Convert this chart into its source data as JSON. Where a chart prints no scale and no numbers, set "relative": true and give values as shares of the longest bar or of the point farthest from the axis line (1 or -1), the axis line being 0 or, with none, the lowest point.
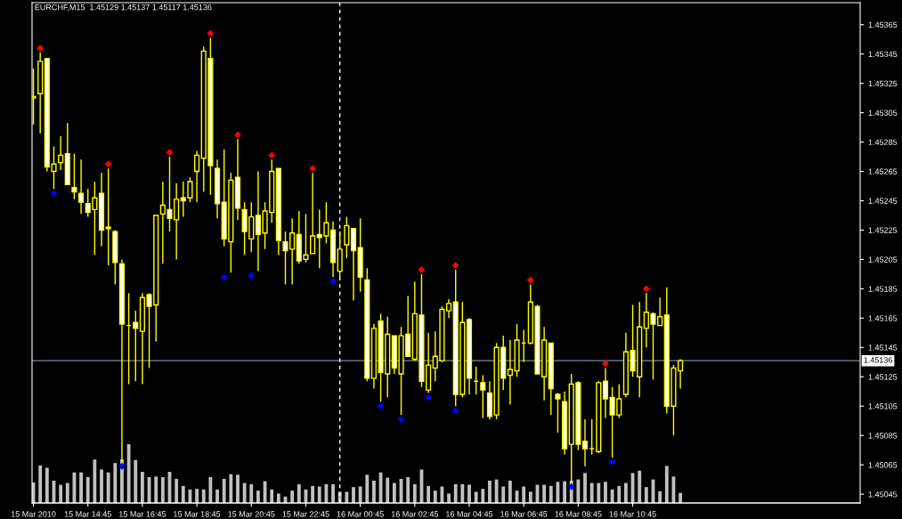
{
  "chart_data": [
    {
      "type": "candlestick",
      "title": "EURCHF,M15  1.45129 1.45137 1.45117 1.45136",
      "x": [
        "2010-03-15T12:45",
        "2010-03-15T13:00",
        "2010-03-15T13:15",
        "2010-03-15T13:30",
        "2010-03-15T13:45",
        "2010-03-15T14:00",
        "2010-03-15T14:15",
        "2010-03-15T14:30",
        "2010-03-15T14:45",
        "2010-03-15T15:00",
        "2010-03-15T15:15",
        "2010-03-15T15:30",
        "2010-03-15T15:45",
        "2010-03-15T16:00",
        "2010-03-15T16:15",
        "2010-03-15T16:30",
        "2010-03-15T16:45",
        "2010-03-15T17:00",
        "2010-03-15T17:15",
        "2010-03-15T17:30",
        "2010-03-15T17:45",
        "2010-03-15T18:00",
        "2010-03-15T18:15",
        "2010-03-15T18:30",
        "2010-03-15T18:45",
        "2010-03-15T19:00",
        "2010-03-15T19:15",
        "2010-03-15T19:30",
        "2010-03-15T19:45",
        "2010-03-15T20:00",
        "2010-03-15T20:15",
        "2010-03-15T20:30",
        "2010-03-15T20:45",
        "2010-03-15T21:00",
        "2010-03-15T21:15",
        "2010-03-15T21:30",
        "2010-03-15T21:45",
        "2010-03-15T22:00",
        "2010-03-15T22:15",
        "2010-03-15T22:30",
        "2010-03-15T22:45",
        "2010-03-15T23:00",
        "2010-03-15T23:15",
        "2010-03-15T23:30",
        "2010-03-15T23:45",
        "2010-03-16T00:00",
        "2010-03-16T00:15",
        "2010-03-16T00:30",
        "2010-03-16T00:45",
        "2010-03-16T01:00",
        "2010-03-16T01:15",
        "2010-03-16T01:30",
        "2010-03-16T01:45",
        "2010-03-16T02:00",
        "2010-03-16T02:15",
        "2010-03-16T02:30",
        "2010-03-16T02:45",
        "2010-03-16T03:00",
        "2010-03-16T03:15",
        "2010-03-16T03:30",
        "2010-03-16T03:45",
        "2010-03-16T04:00",
        "2010-03-16T04:15",
        "2010-03-16T04:30",
        "2010-03-16T04:45",
        "2010-03-16T05:00",
        "2010-03-16T05:15",
        "2010-03-16T05:30",
        "2010-03-16T05:45",
        "2010-03-16T06:00",
        "2010-03-16T06:15",
        "2010-03-16T06:30",
        "2010-03-16T06:45",
        "2010-03-16T07:00",
        "2010-03-16T07:15",
        "2010-03-16T07:30",
        "2010-03-16T07:45",
        "2010-03-16T08:00",
        "2010-03-16T08:15",
        "2010-03-16T08:30",
        "2010-03-16T08:45",
        "2010-03-16T09:00",
        "2010-03-16T09:15",
        "2010-03-16T09:30",
        "2010-03-16T09:45",
        "2010-03-16T10:00",
        "2010-03-16T10:15",
        "2010-03-16T10:30",
        "2010-03-16T10:45",
        "2010-03-16T11:00",
        "2010-03-16T11:15",
        "2010-03-16T11:30",
        "2010-03-16T11:45",
        "2010-03-16T12:00",
        "2010-03-16T12:15",
        "2010-03-16T12:30"
      ],
      "series": [
        {
          "type": "candlestick",
          "color": "#ffff00",
          "ohlc": [
            [
              1.45315,
              1.45335,
              1.45297,
              1.45316
            ],
            [
              1.45318,
              1.45346,
              1.45291,
              1.4534
            ],
            [
              1.45342,
              1.45342,
              1.45265,
              1.45268
            ],
            [
              1.45265,
              1.45282,
              1.45253,
              1.4527
            ],
            [
              1.45271,
              1.45289,
              1.45266,
              1.45276
            ],
            [
              1.45277,
              1.45298,
              1.45256,
              1.45256
            ],
            [
              1.45254,
              1.45277,
              1.45246,
              1.45251
            ],
            [
              1.4525,
              1.45273,
              1.45236,
              1.45244
            ],
            [
              1.45243,
              1.45253,
              1.45234,
              1.45237
            ],
            [
              1.45239,
              1.45258,
              1.45208,
              1.45247
            ],
            [
              1.4525,
              1.45264,
              1.45214,
              1.45225
            ],
            [
              1.45227,
              1.45267,
              1.45201,
              1.45226
            ],
            [
              1.45224,
              1.45225,
              1.45188,
              1.45203
            ],
            [
              1.45202,
              1.45205,
              1.45067,
              1.45161
            ],
            [
              1.4516,
              1.45182,
              1.4512,
              1.4516
            ],
            [
              1.45162,
              1.4517,
              1.45122,
              1.45158
            ],
            [
              1.45156,
              1.45182,
              1.4512,
              1.45179
            ],
            [
              1.45181,
              1.45182,
              1.45131,
              1.45173
            ],
            [
              1.45174,
              1.45235,
              1.45149,
              1.45235
            ],
            [
              1.45236,
              1.45258,
              1.45202,
              1.45242
            ],
            [
              1.45239,
              1.45275,
              1.45224,
              1.45233
            ],
            [
              1.45232,
              1.45257,
              1.45205,
              1.45246
            ],
            [
              1.45247,
              1.45258,
              1.45234,
              1.45245
            ],
            [
              1.45247,
              1.45261,
              1.45244,
              1.45258
            ],
            [
              1.45265,
              1.45279,
              1.45244,
              1.45276
            ],
            [
              1.45274,
              1.4535,
              1.45251,
              1.45347
            ],
            [
              1.45342,
              1.45356,
              1.45249,
              1.45269
            ],
            [
              1.45267,
              1.45273,
              1.45233,
              1.45243
            ],
            [
              1.45244,
              1.4528,
              1.45214,
              1.45219
            ],
            [
              1.45217,
              1.45264,
              1.45196,
              1.45259
            ],
            [
              1.45261,
              1.45287,
              1.45232,
              1.4524
            ],
            [
              1.45239,
              1.45244,
              1.45208,
              1.45224
            ],
            [
              1.45219,
              1.45244,
              1.4521,
              1.45234
            ],
            [
              1.45235,
              1.45265,
              1.45197,
              1.45222
            ],
            [
              1.45223,
              1.45244,
              1.45212,
              1.45238
            ],
            [
              1.45237,
              1.45273,
              1.4523,
              1.45265
            ],
            [
              1.45267,
              1.45267,
              1.45208,
              1.45218
            ],
            [
              1.45217,
              1.45224,
              1.45188,
              1.45211
            ],
            [
              1.45212,
              1.45233,
              1.45188,
              1.45223
            ],
            [
              1.45222,
              1.45238,
              1.45202,
              1.45204
            ],
            [
              1.45205,
              1.45236,
              1.45203,
              1.45208
            ],
            [
              1.45209,
              1.45264,
              1.45209,
              1.45221
            ],
            [
              1.45222,
              1.45239,
              1.45199,
              1.4522
            ],
            [
              1.45221,
              1.45244,
              1.45216,
              1.4523
            ],
            [
              1.45225,
              1.45231,
              1.45193,
              1.45203
            ],
            [
              1.45197,
              1.45224,
              1.45193,
              1.45212
            ],
            [
              1.45215,
              1.45234,
              1.45206,
              1.45228
            ],
            [
              1.45226,
              1.45226,
              1.45177,
              1.45211
            ],
            [
              1.45213,
              1.45233,
              1.45183,
              1.45193
            ],
            [
              1.45191,
              1.45199,
              1.45122,
              1.45124
            ],
            [
              1.45124,
              1.45161,
              1.45117,
              1.45158
            ],
            [
              1.45163,
              1.45168,
              1.45108,
              1.45128
            ],
            [
              1.45127,
              1.45166,
              1.45111,
              1.45154
            ],
            [
              1.45153,
              1.45153,
              1.45127,
              1.45131
            ],
            [
              1.45127,
              1.45159,
              1.45099,
              1.45153
            ],
            [
              1.45154,
              1.4518,
              1.45139,
              1.45139
            ],
            [
              1.45137,
              1.4519,
              1.45136,
              1.45168
            ],
            [
              1.45167,
              1.45195,
              1.45118,
              1.45122
            ],
            [
              1.45116,
              1.45155,
              1.45114,
              1.45133
            ],
            [
              1.45131,
              1.45156,
              1.45122,
              1.45139
            ],
            [
              1.45136,
              1.45173,
              1.45135,
              1.45171
            ],
            [
              1.4517,
              1.45178,
              1.45165,
              1.45175
            ],
            [
              1.45176,
              1.45198,
              1.45105,
              1.45113
            ],
            [
              1.45113,
              1.45176,
              1.45111,
              1.45162
            ],
            [
              1.45164,
              1.45165,
              1.45113,
              1.45124
            ],
            [
              1.45122,
              1.45132,
              1.45113,
              1.45122
            ],
            [
              1.45121,
              1.45126,
              1.45097,
              1.45116
            ],
            [
              1.45114,
              1.45122,
              1.45096,
              1.45098
            ],
            [
              1.45099,
              1.45148,
              1.45096,
              1.45145
            ],
            [
              1.45145,
              1.45153,
              1.45116,
              1.45124
            ],
            [
              1.45126,
              1.4515,
              1.45106,
              1.4513
            ],
            [
              1.45129,
              1.45161,
              1.45125,
              1.4515
            ],
            [
              1.45148,
              1.45157,
              1.45135,
              1.45148
            ],
            [
              1.45148,
              1.45188,
              1.45147,
              1.45176
            ],
            [
              1.45173,
              1.45174,
              1.45127,
              1.45127
            ],
            [
              1.45125,
              1.45159,
              1.45109,
              1.4515
            ],
            [
              1.45148,
              1.45148,
              1.45099,
              1.45117
            ],
            [
              1.45113,
              1.45114,
              1.45087,
              1.4511
            ],
            [
              1.45108,
              1.45115,
              1.45072,
              1.45076
            ],
            [
              1.45079,
              1.45127,
              1.45053,
              1.4512
            ],
            [
              1.45121,
              1.45122,
              1.45075,
              1.45079
            ],
            [
              1.45081,
              1.45096,
              1.45064,
              1.45076
            ],
            [
              1.45076,
              1.45096,
              1.45072,
              1.45076
            ],
            [
              1.45074,
              1.45122,
              1.45073,
              1.45121
            ],
            [
              1.45122,
              1.45131,
              1.45097,
              1.4511
            ],
            [
              1.45111,
              1.45118,
              1.4507,
              1.45099
            ],
            [
              1.45099,
              1.4512,
              1.45097,
              1.4511
            ],
            [
              1.45113,
              1.45155,
              1.45111,
              1.45142
            ],
            [
              1.45143,
              1.45174,
              1.45125,
              1.45129
            ],
            [
              1.45125,
              1.45176,
              1.45111,
              1.45159
            ],
            [
              1.45158,
              1.45182,
              1.45145,
              1.45169
            ],
            [
              1.45168,
              1.45169,
              1.45123,
              1.45161
            ],
            [
              1.4516,
              1.45179,
              1.4516,
              1.45166
            ],
            [
              1.45167,
              1.45186,
              1.451,
              1.45105
            ],
            [
              1.45105,
              1.45133,
              1.45085,
              1.45131
            ],
            [
              1.45129,
              1.45137,
              1.45117,
              1.45136
            ]
          ]
        },
        {
          "type": "scatter",
          "color": "#ff0000",
          "marker": "diamond",
          "x": [
            "2010-03-15T13:00",
            "2010-03-15T15:30",
            "2010-03-15T17:45",
            "2010-03-15T19:15",
            "2010-03-15T20:15",
            "2010-03-15T21:30",
            "2010-03-15T23:00",
            "2010-03-16T03:00",
            "2010-03-16T04:15",
            "2010-03-16T07:00",
            "2010-03-16T09:45",
            "2010-03-16T11:15"
          ],
          "values": [
            1.45349,
            1.4527,
            1.45278,
            1.45359,
            1.4529,
            1.45276,
            1.45267,
            1.45198,
            1.45201,
            1.45191,
            1.45134,
            1.45185
          ]
        },
        {
          "type": "scatter",
          "color": "#0000ff",
          "marker": "diamond",
          "x": [
            "2010-03-15T13:30",
            "2010-03-15T16:00",
            "2010-03-15T19:45",
            "2010-03-15T20:45",
            "2010-03-15T23:45",
            "2010-03-16T01:30",
            "2010-03-16T02:15",
            "2010-03-16T03:15",
            "2010-03-16T04:15",
            "2010-03-16T08:30",
            "2010-03-16T10:00"
          ],
          "values": [
            1.4525,
            1.45064,
            1.45193,
            1.45194,
            1.4519,
            1.45105,
            1.45096,
            1.45111,
            1.45102,
            1.4505,
            1.45067
          ]
        }
      ],
      "xlim": [
        "2010-03-15T12:42",
        "2010-03-16T19:06"
      ],
      "xticks": [
        {
          "value": "2010-03-15T12:45",
          "label": "15 Mar 2010"
        },
        {
          "value": "2010-03-15T14:45",
          "label": "15 Mar 14:45"
        },
        {
          "value": "2010-03-15T16:45",
          "label": "15 Mar 16:45"
        },
        {
          "value": "2010-03-15T18:45",
          "label": "15 Mar 18:45"
        },
        {
          "value": "2010-03-15T20:45",
          "label": "15 Mar 20:45"
        },
        {
          "value": "2010-03-15T22:45",
          "label": "15 Mar 22:45"
        },
        {
          "value": "2010-03-16T00:45",
          "label": "16 Mar 00:45"
        },
        {
          "value": "2010-03-16T02:45",
          "label": "16 Mar 02:45"
        },
        {
          "value": "2010-03-16T04:45",
          "label": "16 Mar 04:45"
        },
        {
          "value": "2010-03-16T06:45",
          "label": "16 Mar 06:45"
        },
        {
          "value": "2010-03-16T08:45",
          "label": "16 Mar 08:45"
        },
        {
          "value": "2010-03-16T10:45",
          "label": "16 Mar 10:45"
        }
      ],
      "ylim": [
        1.45039,
        1.4538
      ],
      "yticks": [
        1.45365,
        1.45345,
        1.45325,
        1.45305,
        1.45285,
        1.45265,
        1.45245,
        1.45225,
        1.45205,
        1.45185,
        1.45165,
        1.45145,
        1.45125,
        1.45105,
        1.45085,
        1.45065,
        1.45045
      ],
      "ref_lines": [
        {
          "axis": "y",
          "value": 1.45136,
          "label": "1.45136",
          "color": "#778899",
          "line_style": "solid"
        },
        {
          "axis": "x",
          "value": "2010-03-16T00:00",
          "color": "#ffffff",
          "line_style": "dashed"
        }
      ]
    },
    {
      "type": "bar",
      "relative": true,
      "tick_labels": false,
      "color": "#c0c0c0",
      "x": [
        "2010-03-15T12:45",
        "2010-03-15T13:00",
        "2010-03-15T13:15",
        "2010-03-15T13:30",
        "2010-03-15T13:45",
        "2010-03-15T14:00",
        "2010-03-15T14:15",
        "2010-03-15T14:30",
        "2010-03-15T14:45",
        "2010-03-15T15:00",
        "2010-03-15T15:15",
        "2010-03-15T15:30",
        "2010-03-15T15:45",
        "2010-03-15T16:00",
        "2010-03-15T16:15",
        "2010-03-15T16:30",
        "2010-03-15T16:45",
        "2010-03-15T17:00",
        "2010-03-15T17:15",
        "2010-03-15T17:30",
        "2010-03-15T17:45",
        "2010-03-15T18:00",
        "2010-03-15T18:15",
        "2010-03-15T18:30",
        "2010-03-15T18:45",
        "2010-03-15T19:00",
        "2010-03-15T19:15",
        "2010-03-15T19:30",
        "2010-03-15T19:45",
        "2010-03-15T20:00",
        "2010-03-15T20:15",
        "2010-03-15T20:30",
        "2010-03-15T20:45",
        "2010-03-15T21:00",
        "2010-03-15T21:15",
        "2010-03-15T21:30",
        "2010-03-15T21:45",
        "2010-03-15T22:00",
        "2010-03-15T22:15",
        "2010-03-15T22:30",
        "2010-03-15T22:45",
        "2010-03-15T23:00",
        "2010-03-15T23:15",
        "2010-03-15T23:30",
        "2010-03-15T23:45",
        "2010-03-16T00:00",
        "2010-03-16T00:15",
        "2010-03-16T00:30",
        "2010-03-16T00:45",
        "2010-03-16T01:00",
        "2010-03-16T01:15",
        "2010-03-16T01:30",
        "2010-03-16T01:45",
        "2010-03-16T02:00",
        "2010-03-16T02:15",
        "2010-03-16T02:30",
        "2010-03-16T02:45",
        "2010-03-16T03:00",
        "2010-03-16T03:15",
        "2010-03-16T03:30",
        "2010-03-16T03:45",
        "2010-03-16T04:00",
        "2010-03-16T04:15",
        "2010-03-16T04:30",
        "2010-03-16T04:45",
        "2010-03-16T05:00",
        "2010-03-16T05:15",
        "2010-03-16T05:30",
        "2010-03-16T05:45",
        "2010-03-16T06:00",
        "2010-03-16T06:15",
        "2010-03-16T06:30",
        "2010-03-16T06:45",
        "2010-03-16T07:00",
        "2010-03-16T07:15",
        "2010-03-16T07:30",
        "2010-03-16T07:45",
        "2010-03-16T08:00",
        "2010-03-16T08:15",
        "2010-03-16T08:30",
        "2010-03-16T08:45",
        "2010-03-16T09:00",
        "2010-03-16T09:15",
        "2010-03-16T09:30",
        "2010-03-16T09:45",
        "2010-03-16T10:00",
        "2010-03-16T10:15",
        "2010-03-16T10:30",
        "2010-03-16T10:45",
        "2010-03-16T11:00",
        "2010-03-16T11:15",
        "2010-03-16T11:30",
        "2010-03-16T11:45",
        "2010-03-16T12:00",
        "2010-03-16T12:15",
        "2010-03-16T12:30"
      ],
      "values": [
        0.35,
        0.64,
        0.6,
        0.38,
        0.31,
        0.34,
        0.52,
        0.52,
        0.44,
        0.74,
        0.57,
        0.52,
        0.68,
        0.74,
        1,
        0.73,
        0.53,
        0.44,
        0.45,
        0.44,
        0.53,
        0.41,
        0.29,
        0.23,
        0.24,
        0.23,
        0.44,
        0.23,
        0.41,
        0.49,
        0.48,
        0.34,
        0.32,
        0.21,
        0.37,
        0.23,
        0.16,
        0.11,
        0.21,
        0.32,
        0.23,
        0.29,
        0.28,
        0.32,
        0.32,
        0.19,
        0.19,
        0.27,
        0.28,
        0.48,
        0.38,
        0.52,
        0.43,
        0.34,
        0.41,
        0.44,
        0.32,
        0.57,
        0.29,
        0.21,
        0.28,
        0.16,
        0.32,
        0.32,
        0.31,
        0.19,
        0.24,
        0.38,
        0.4,
        0.28,
        0.38,
        0.21,
        0.28,
        0.19,
        0.31,
        0.31,
        0.29,
        0.36,
        0.37,
        0.38,
        0.4,
        0.51,
        0.34,
        0.34,
        0.36,
        0.23,
        0.29,
        0.34,
        0.51,
        0.55,
        0.27,
        0.4,
        0.2,
        0.63,
        0.45,
        0.17
      ],
      "xlim": [
        "2010-03-15T12:42",
        "2010-03-16T19:06"
      ]
    }
  ]
}
